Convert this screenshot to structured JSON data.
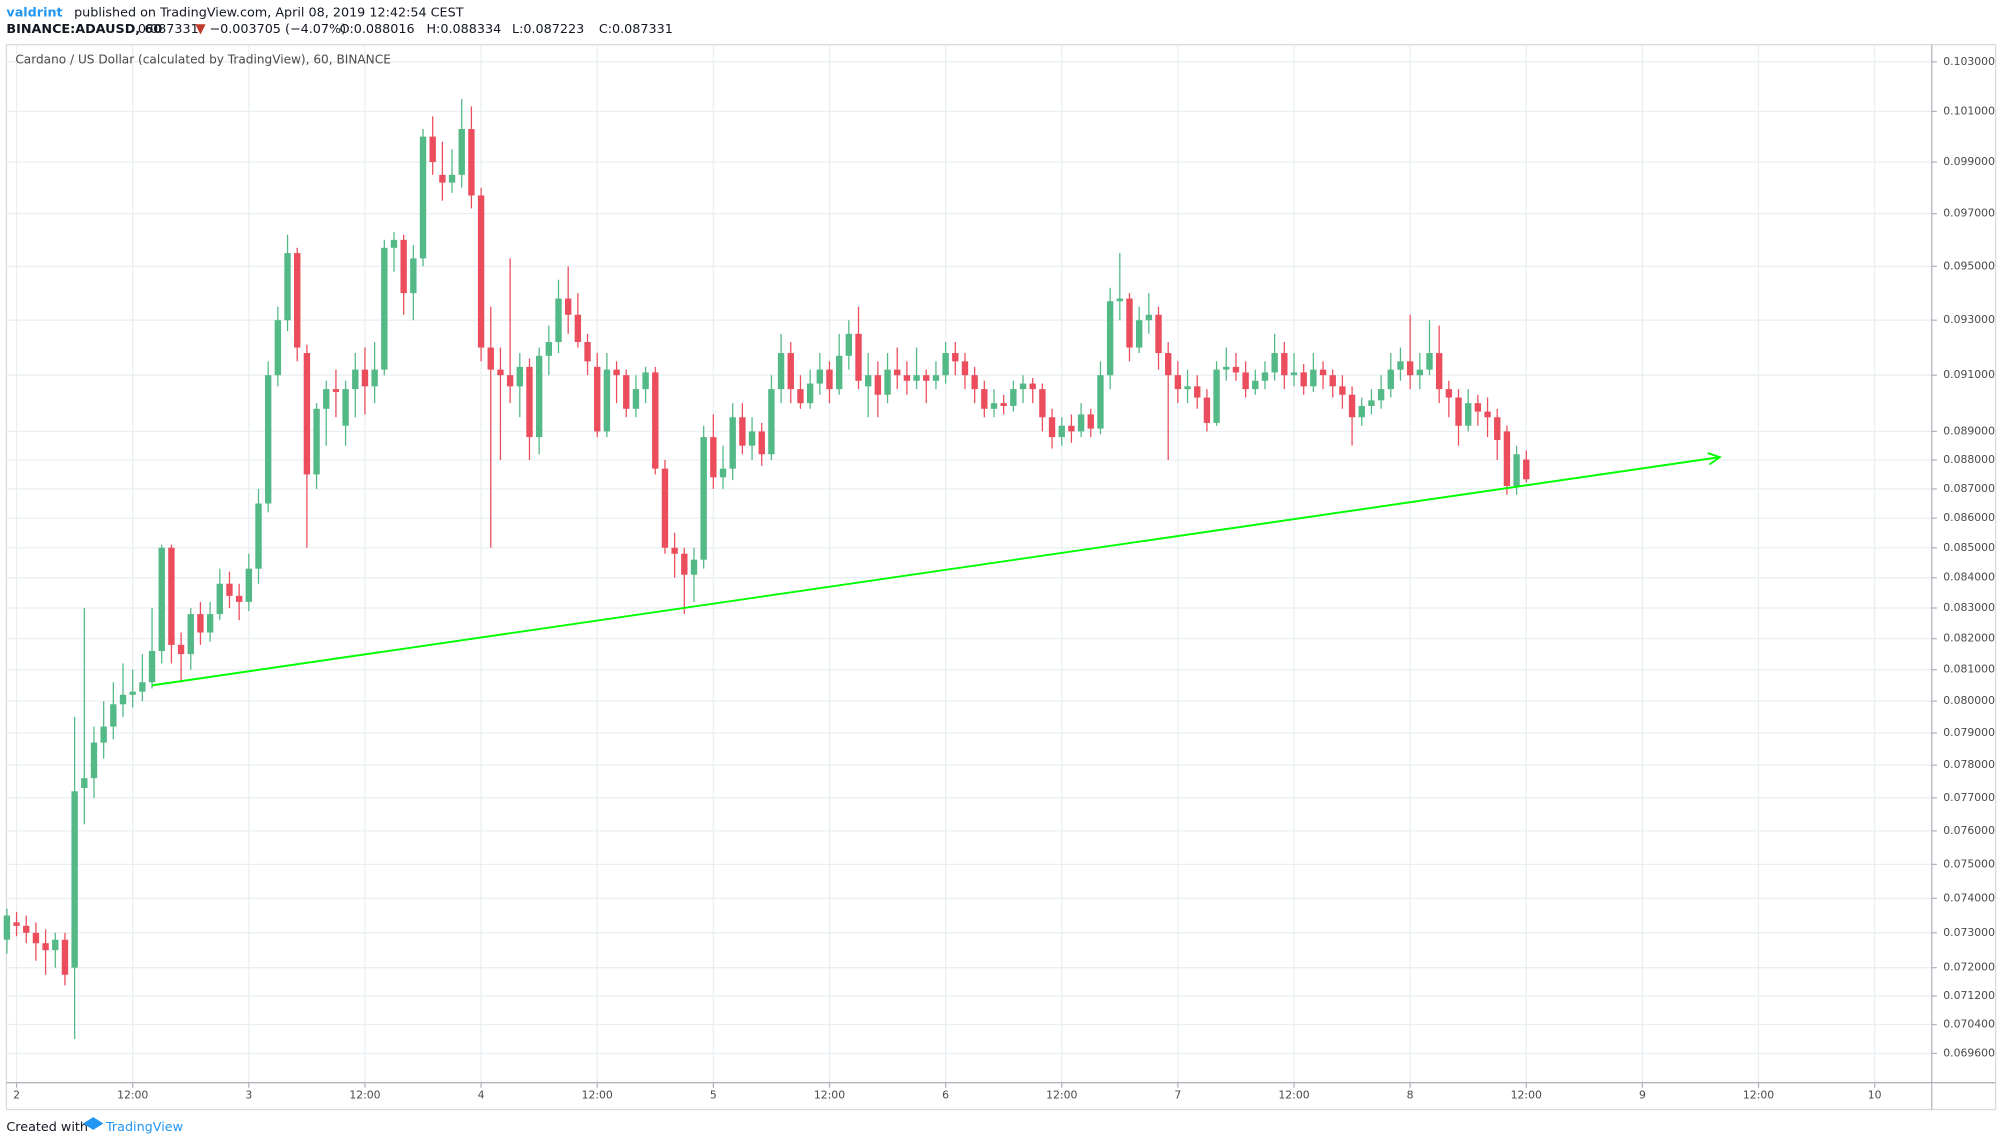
{
  "header": {
    "author": "valdrint",
    "published": "published on TradingView.com, April 08, 2019 12:42:54 CEST",
    "symbol": "BINANCE:ADAUSD, 60",
    "last": "0.087331",
    "change": "−0.003705 (−4.07%)",
    "open": "O:0.088016",
    "high": "H:0.088334",
    "low": "L:0.087223",
    "close": "C:0.087331"
  },
  "footer": {
    "created": "Created with",
    "brand": "TradingView"
  },
  "chart_data": {
    "type": "candlestick",
    "title": "Cardano / US Dollar (calculated by TradingView), 60, BINANCE",
    "log_scale": true,
    "grid": true,
    "up_color": "#53b987",
    "down_color": "#eb4d5c",
    "xlim": [
      -1.05,
      197.9
    ],
    "ylim": [
      0.0688,
      0.1037
    ],
    "xticks": [
      {
        "value": 0,
        "label": "2"
      },
      {
        "value": 12,
        "label": "12:00"
      },
      {
        "value": 24,
        "label": "3"
      },
      {
        "value": 36,
        "label": "12:00"
      },
      {
        "value": 48,
        "label": "4"
      },
      {
        "value": 60,
        "label": "12:00"
      },
      {
        "value": 72,
        "label": "5"
      },
      {
        "value": 84,
        "label": "12:00"
      },
      {
        "value": 96,
        "label": "6"
      },
      {
        "value": 108,
        "label": "12:00"
      },
      {
        "value": 120,
        "label": "7"
      },
      {
        "value": 132,
        "label": "12:00"
      },
      {
        "value": 144,
        "label": "8"
      },
      {
        "value": 156,
        "label": "12:00"
      },
      {
        "value": 168,
        "label": "9"
      },
      {
        "value": 180,
        "label": "12:00"
      },
      {
        "value": 192,
        "label": "10"
      }
    ],
    "yticks": [
      {
        "value": 0.103,
        "label": "0.103000"
      },
      {
        "value": 0.101,
        "label": "0.101000"
      },
      {
        "value": 0.099,
        "label": "0.099000"
      },
      {
        "value": 0.097,
        "label": "0.097000"
      },
      {
        "value": 0.095,
        "label": "0.095000"
      },
      {
        "value": 0.093,
        "label": "0.093000"
      },
      {
        "value": 0.091,
        "label": "0.091000"
      },
      {
        "value": 0.089,
        "label": "0.089000"
      },
      {
        "value": 0.088,
        "label": "0.088000"
      },
      {
        "value": 0.087,
        "label": "0.087000"
      },
      {
        "value": 0.086,
        "label": "0.086000"
      },
      {
        "value": 0.085,
        "label": "0.085000"
      },
      {
        "value": 0.084,
        "label": "0.084000"
      },
      {
        "value": 0.083,
        "label": "0.083000"
      },
      {
        "value": 0.082,
        "label": "0.082000"
      },
      {
        "value": 0.081,
        "label": "0.081000"
      },
      {
        "value": 0.08,
        "label": "0.080000"
      },
      {
        "value": 0.079,
        "label": "0.079000"
      },
      {
        "value": 0.078,
        "label": "0.078000"
      },
      {
        "value": 0.077,
        "label": "0.077000"
      },
      {
        "value": 0.076,
        "label": "0.076000"
      },
      {
        "value": 0.075,
        "label": "0.075000"
      },
      {
        "value": 0.074,
        "label": "0.074000"
      },
      {
        "value": 0.073,
        "label": "0.073000"
      },
      {
        "value": 0.072,
        "label": "0.072000"
      },
      {
        "value": 0.0712,
        "label": "0.071200"
      },
      {
        "value": 0.0704,
        "label": "0.070400"
      },
      {
        "value": 0.0696,
        "label": "0.069600"
      }
    ],
    "trendline": {
      "color": "#00ff00",
      "x": [
        14,
        176
      ],
      "y": [
        0.0805,
        0.0881
      ]
    },
    "candles": [
      [
        -1,
        0.0728,
        0.0737,
        0.0724,
        0.0735
      ],
      [
        0,
        0.0733,
        0.0736,
        0.0729,
        0.0732
      ],
      [
        1,
        0.0732,
        0.0735,
        0.0727,
        0.073
      ],
      [
        2,
        0.073,
        0.0733,
        0.0722,
        0.0727
      ],
      [
        3,
        0.0727,
        0.0731,
        0.0718,
        0.0725
      ],
      [
        4,
        0.0725,
        0.073,
        0.072,
        0.0728
      ],
      [
        5,
        0.0728,
        0.073,
        0.0715,
        0.0718
      ],
      [
        6,
        0.072,
        0.0795,
        0.07,
        0.0772
      ],
      [
        7,
        0.0773,
        0.083,
        0.0762,
        0.0776
      ],
      [
        8,
        0.0776,
        0.0792,
        0.077,
        0.0787
      ],
      [
        9,
        0.0787,
        0.08,
        0.0782,
        0.0792
      ],
      [
        10,
        0.0792,
        0.0806,
        0.0788,
        0.0799
      ],
      [
        11,
        0.0799,
        0.0812,
        0.0795,
        0.0802
      ],
      [
        12,
        0.0802,
        0.081,
        0.0798,
        0.0803
      ],
      [
        13,
        0.0803,
        0.0815,
        0.08,
        0.0806
      ],
      [
        14,
        0.0806,
        0.083,
        0.0804,
        0.0816
      ],
      [
        15,
        0.0816,
        0.0851,
        0.0812,
        0.085
      ],
      [
        16,
        0.085,
        0.0851,
        0.0812,
        0.0818
      ],
      [
        17,
        0.0818,
        0.0822,
        0.0806,
        0.0815
      ],
      [
        18,
        0.0815,
        0.083,
        0.081,
        0.0828
      ],
      [
        19,
        0.0828,
        0.0832,
        0.0818,
        0.0822
      ],
      [
        20,
        0.0822,
        0.0832,
        0.0819,
        0.0828
      ],
      [
        21,
        0.0828,
        0.0843,
        0.0826,
        0.0838
      ],
      [
        22,
        0.0838,
        0.0842,
        0.083,
        0.0834
      ],
      [
        23,
        0.0834,
        0.0838,
        0.0826,
        0.0832
      ],
      [
        24,
        0.0832,
        0.0848,
        0.0829,
        0.0843
      ],
      [
        25,
        0.0843,
        0.087,
        0.0838,
        0.0865
      ],
      [
        26,
        0.0865,
        0.0915,
        0.0862,
        0.091
      ],
      [
        27,
        0.091,
        0.0935,
        0.0906,
        0.093
      ],
      [
        28,
        0.093,
        0.0962,
        0.0926,
        0.0955
      ],
      [
        29,
        0.0955,
        0.0957,
        0.0915,
        0.092
      ],
      [
        30,
        0.0918,
        0.0921,
        0.085,
        0.0875
      ],
      [
        31,
        0.0875,
        0.09,
        0.087,
        0.0898
      ],
      [
        32,
        0.0898,
        0.0908,
        0.0885,
        0.0905
      ],
      [
        33,
        0.0905,
        0.0912,
        0.0895,
        0.0904
      ],
      [
        34,
        0.0892,
        0.0908,
        0.0885,
        0.0905
      ],
      [
        35,
        0.0905,
        0.0918,
        0.0895,
        0.0912
      ],
      [
        36,
        0.0912,
        0.092,
        0.0896,
        0.0906
      ],
      [
        37,
        0.0906,
        0.0922,
        0.09,
        0.0912
      ],
      [
        38,
        0.0912,
        0.096,
        0.091,
        0.0957
      ],
      [
        39,
        0.0957,
        0.0963,
        0.0948,
        0.096
      ],
      [
        40,
        0.096,
        0.0962,
        0.0932,
        0.094
      ],
      [
        41,
        0.094,
        0.0958,
        0.093,
        0.0953
      ],
      [
        42,
        0.0953,
        0.1003,
        0.095,
        0.1
      ],
      [
        43,
        0.1,
        0.1008,
        0.0985,
        0.099
      ],
      [
        44,
        0.0985,
        0.0998,
        0.0975,
        0.0982
      ],
      [
        45,
        0.0982,
        0.0995,
        0.0978,
        0.0985
      ],
      [
        46,
        0.0985,
        0.1015,
        0.098,
        0.1003
      ],
      [
        47,
        0.1003,
        0.1012,
        0.0972,
        0.0977
      ],
      [
        48,
        0.0977,
        0.098,
        0.0915,
        0.092
      ],
      [
        49,
        0.092,
        0.0935,
        0.085,
        0.0912
      ],
      [
        50,
        0.0912,
        0.092,
        0.088,
        0.091
      ],
      [
        51,
        0.091,
        0.0953,
        0.09,
        0.0906
      ],
      [
        52,
        0.0906,
        0.0918,
        0.0895,
        0.0913
      ],
      [
        53,
        0.0913,
        0.0916,
        0.088,
        0.0888
      ],
      [
        54,
        0.0888,
        0.092,
        0.0882,
        0.0917
      ],
      [
        55,
        0.0917,
        0.0928,
        0.091,
        0.0922
      ],
      [
        56,
        0.0922,
        0.0945,
        0.0918,
        0.0938
      ],
      [
        57,
        0.0938,
        0.095,
        0.0925,
        0.0932
      ],
      [
        58,
        0.0932,
        0.094,
        0.092,
        0.0922
      ],
      [
        59,
        0.0922,
        0.0925,
        0.091,
        0.0915
      ],
      [
        60,
        0.0913,
        0.0918,
        0.0888,
        0.089
      ],
      [
        61,
        0.089,
        0.0918,
        0.0888,
        0.0912
      ],
      [
        62,
        0.0912,
        0.0915,
        0.09,
        0.091
      ],
      [
        63,
        0.091,
        0.0912,
        0.0895,
        0.0898
      ],
      [
        64,
        0.0898,
        0.091,
        0.0895,
        0.0905
      ],
      [
        65,
        0.0905,
        0.0913,
        0.09,
        0.0911
      ],
      [
        66,
        0.0911,
        0.0913,
        0.0875,
        0.0877
      ],
      [
        67,
        0.0877,
        0.088,
        0.0848,
        0.085
      ],
      [
        68,
        0.085,
        0.0855,
        0.084,
        0.0848
      ],
      [
        69,
        0.0848,
        0.085,
        0.0828,
        0.0841
      ],
      [
        70,
        0.0841,
        0.085,
        0.0832,
        0.0846
      ],
      [
        71,
        0.0846,
        0.0892,
        0.0843,
        0.0888
      ],
      [
        72,
        0.0888,
        0.0896,
        0.087,
        0.0874
      ],
      [
        73,
        0.0874,
        0.0885,
        0.087,
        0.0877
      ],
      [
        74,
        0.0877,
        0.09,
        0.0873,
        0.0895
      ],
      [
        75,
        0.0895,
        0.09,
        0.0882,
        0.0885
      ],
      [
        76,
        0.0885,
        0.0895,
        0.088,
        0.089
      ],
      [
        77,
        0.089,
        0.0893,
        0.0878,
        0.0882
      ],
      [
        78,
        0.0882,
        0.091,
        0.088,
        0.0905
      ],
      [
        79,
        0.0905,
        0.0925,
        0.09,
        0.0918
      ],
      [
        80,
        0.0918,
        0.0922,
        0.09,
        0.0905
      ],
      [
        81,
        0.0905,
        0.091,
        0.0898,
        0.09
      ],
      [
        82,
        0.09,
        0.0912,
        0.0898,
        0.0907
      ],
      [
        83,
        0.0907,
        0.0918,
        0.0903,
        0.0912
      ],
      [
        84,
        0.0912,
        0.0915,
        0.09,
        0.0905
      ],
      [
        85,
        0.0905,
        0.0925,
        0.0903,
        0.0917
      ],
      [
        86,
        0.0917,
        0.093,
        0.0912,
        0.0925
      ],
      [
        87,
        0.0925,
        0.0935,
        0.0905,
        0.0908
      ],
      [
        88,
        0.0906,
        0.0918,
        0.0895,
        0.091
      ],
      [
        89,
        0.091,
        0.0915,
        0.0895,
        0.0903
      ],
      [
        90,
        0.0903,
        0.0918,
        0.09,
        0.0912
      ],
      [
        91,
        0.0912,
        0.092,
        0.0905,
        0.091
      ],
      [
        92,
        0.091,
        0.0915,
        0.0903,
        0.0908
      ],
      [
        93,
        0.0908,
        0.092,
        0.0905,
        0.091
      ],
      [
        94,
        0.091,
        0.0912,
        0.09,
        0.0908
      ],
      [
        95,
        0.0908,
        0.0915,
        0.0905,
        0.091
      ],
      [
        96,
        0.091,
        0.0922,
        0.0907,
        0.0918
      ],
      [
        97,
        0.0918,
        0.0922,
        0.091,
        0.0915
      ],
      [
        98,
        0.0915,
        0.0918,
        0.0905,
        0.091
      ],
      [
        99,
        0.091,
        0.0913,
        0.09,
        0.0905
      ],
      [
        100,
        0.0905,
        0.0908,
        0.0895,
        0.0898
      ],
      [
        101,
        0.0898,
        0.0905,
        0.0895,
        0.09
      ],
      [
        102,
        0.09,
        0.0903,
        0.0896,
        0.0899
      ],
      [
        103,
        0.0899,
        0.0908,
        0.0897,
        0.0905
      ],
      [
        104,
        0.0905,
        0.091,
        0.09,
        0.0907
      ],
      [
        105,
        0.0907,
        0.0909,
        0.09,
        0.0905
      ],
      [
        106,
        0.0905,
        0.0907,
        0.089,
        0.0895
      ],
      [
        107,
        0.0895,
        0.0898,
        0.0884,
        0.0888
      ],
      [
        108,
        0.0888,
        0.0895,
        0.0885,
        0.0892
      ],
      [
        109,
        0.0892,
        0.0896,
        0.0886,
        0.089
      ],
      [
        110,
        0.089,
        0.09,
        0.0888,
        0.0896
      ],
      [
        111,
        0.0896,
        0.0898,
        0.0888,
        0.0891
      ],
      [
        112,
        0.0891,
        0.0915,
        0.0889,
        0.091
      ],
      [
        113,
        0.091,
        0.0942,
        0.0905,
        0.0937
      ],
      [
        114,
        0.0937,
        0.0955,
        0.093,
        0.0938
      ],
      [
        115,
        0.0938,
        0.094,
        0.0915,
        0.092
      ],
      [
        116,
        0.092,
        0.0935,
        0.0918,
        0.093
      ],
      [
        117,
        0.093,
        0.094,
        0.0925,
        0.0932
      ],
      [
        118,
        0.0932,
        0.0935,
        0.0912,
        0.0918
      ],
      [
        119,
        0.0918,
        0.0922,
        0.088,
        0.091
      ],
      [
        120,
        0.091,
        0.0915,
        0.09,
        0.0905
      ],
      [
        121,
        0.0905,
        0.0912,
        0.09,
        0.0906
      ],
      [
        122,
        0.0906,
        0.091,
        0.0898,
        0.0902
      ],
      [
        123,
        0.0902,
        0.0905,
        0.089,
        0.0893
      ],
      [
        124,
        0.0893,
        0.0915,
        0.0892,
        0.0912
      ],
      [
        125,
        0.0912,
        0.092,
        0.0908,
        0.0913
      ],
      [
        126,
        0.0913,
        0.0918,
        0.0908,
        0.0911
      ],
      [
        127,
        0.0911,
        0.0915,
        0.0902,
        0.0905
      ],
      [
        128,
        0.0905,
        0.0912,
        0.0903,
        0.0908
      ],
      [
        129,
        0.0908,
        0.0915,
        0.0905,
        0.0911
      ],
      [
        130,
        0.0911,
        0.0925,
        0.0908,
        0.0918
      ],
      [
        131,
        0.0918,
        0.0922,
        0.0905,
        0.091
      ],
      [
        132,
        0.091,
        0.0918,
        0.0906,
        0.0911
      ],
      [
        133,
        0.0911,
        0.0914,
        0.0903,
        0.0906
      ],
      [
        134,
        0.0906,
        0.0918,
        0.0904,
        0.0912
      ],
      [
        135,
        0.0912,
        0.0915,
        0.0905,
        0.091
      ],
      [
        136,
        0.091,
        0.0912,
        0.0902,
        0.0906
      ],
      [
        137,
        0.0906,
        0.091,
        0.0898,
        0.0903
      ],
      [
        138,
        0.0903,
        0.0906,
        0.0885,
        0.0895
      ],
      [
        139,
        0.0895,
        0.0902,
        0.0892,
        0.0899
      ],
      [
        140,
        0.0899,
        0.0905,
        0.0896,
        0.0901
      ],
      [
        141,
        0.0901,
        0.091,
        0.0898,
        0.0905
      ],
      [
        142,
        0.0905,
        0.0918,
        0.0902,
        0.0912
      ],
      [
        143,
        0.0912,
        0.092,
        0.0908,
        0.0915
      ],
      [
        144,
        0.0915,
        0.0932,
        0.0905,
        0.091
      ],
      [
        145,
        0.091,
        0.0918,
        0.0905,
        0.0912
      ],
      [
        146,
        0.0912,
        0.093,
        0.091,
        0.0918
      ],
      [
        147,
        0.0918,
        0.0928,
        0.09,
        0.0905
      ],
      [
        148,
        0.0905,
        0.0908,
        0.0895,
        0.0902
      ],
      [
        149,
        0.0902,
        0.0905,
        0.0885,
        0.0892
      ],
      [
        150,
        0.0892,
        0.0905,
        0.089,
        0.09
      ],
      [
        151,
        0.09,
        0.0903,
        0.0892,
        0.0897
      ],
      [
        152,
        0.0897,
        0.0902,
        0.0888,
        0.0895
      ],
      [
        153,
        0.0895,
        0.0898,
        0.088,
        0.0887
      ],
      [
        154,
        0.089,
        0.0892,
        0.0868,
        0.0871
      ],
      [
        155,
        0.0871,
        0.0885,
        0.0868,
        0.0882
      ],
      [
        156,
        0.088016,
        0.088334,
        0.087223,
        0.087331
      ]
    ]
  }
}
